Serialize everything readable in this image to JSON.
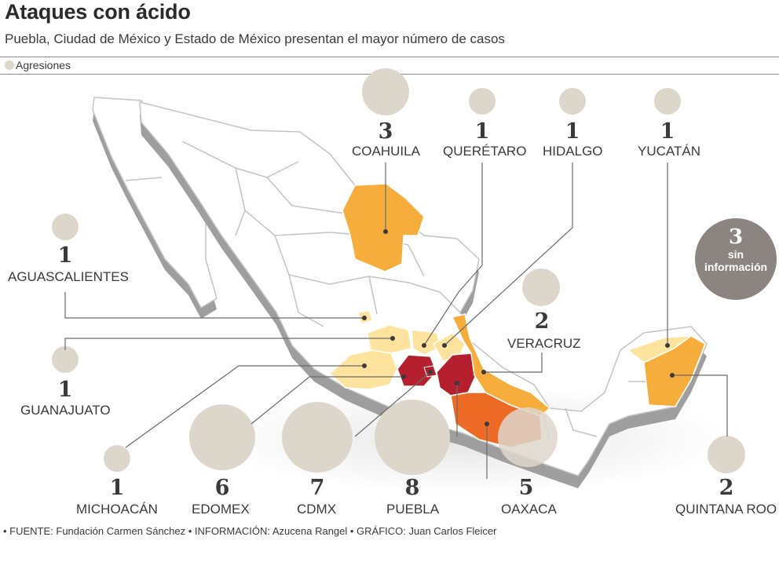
{
  "header": {
    "title": "Ataques con ácido",
    "subtitle": "Puebla, Ciudad de México y Estado de México presentan el mayor número de casos",
    "legend_label": "Agresiones"
  },
  "no_data": {
    "count": "3",
    "label_line1": "sin",
    "label_line2": "información"
  },
  "states": [
    {
      "id": "coahuila",
      "name": "COAHUILA",
      "count": "3",
      "color": "#f7ad3c"
    },
    {
      "id": "queretaro",
      "name": "QUERÉTARO",
      "count": "1",
      "color": "#fde39d"
    },
    {
      "id": "hidalgo",
      "name": "HIDALGO",
      "count": "1",
      "color": "#fde39d"
    },
    {
      "id": "yucatan",
      "name": "YUCATÁN",
      "count": "1",
      "color": "#fde39d"
    },
    {
      "id": "aguascalientes",
      "name": "AGUASCALIENTES",
      "count": "1",
      "color": "#fde39d"
    },
    {
      "id": "guanajuato",
      "name": "GUANAJUATO",
      "count": "1",
      "color": "#fde39d"
    },
    {
      "id": "veracruz",
      "name": "VERACRUZ",
      "count": "2",
      "color": "#f7ad3c"
    },
    {
      "id": "michoacan",
      "name": "MICHOACÁN",
      "count": "1",
      "color": "#fde39d"
    },
    {
      "id": "edomex",
      "name": "EDOMEX",
      "count": "6",
      "color": "#b6202e"
    },
    {
      "id": "cdmx",
      "name": "CDMX",
      "count": "7",
      "color": "#b6202e"
    },
    {
      "id": "puebla",
      "name": "PUEBLA",
      "count": "8",
      "color": "#b6202e"
    },
    {
      "id": "oaxaca",
      "name": "OAXACA",
      "count": "5",
      "color": "#ee6b26"
    },
    {
      "id": "quintana_roo",
      "name": "QUINTANA ROO",
      "count": "2",
      "color": "#f7ad3c"
    }
  ],
  "colors": {
    "bubble": "#ddd6cb",
    "map_fill": "#ffffff",
    "map_side": "#9e9e9e",
    "border": "#c4c4c4",
    "leader": "#6a6a6a"
  },
  "footer": "• FUENTE: Fundación Carmen Sánchez • INFORMACIÓN: Azucena Rangel • GRÁFICO: Juan Carlos Fleicer"
}
